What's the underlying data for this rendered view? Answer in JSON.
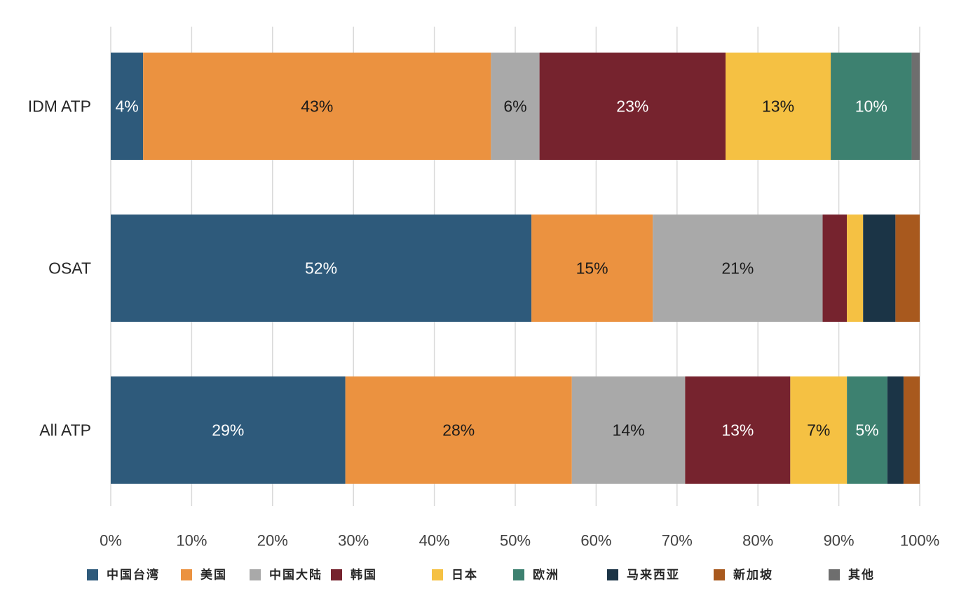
{
  "chart_data": {
    "type": "bar",
    "orientation": "horizontal",
    "stacked": true,
    "categories": [
      "IDM ATP",
      "OSAT",
      "All ATP"
    ],
    "xlim": [
      0,
      100
    ],
    "x_ticks": [
      "0%",
      "10%",
      "20%",
      "30%",
      "40%",
      "50%",
      "60%",
      "70%",
      "80%",
      "90%",
      "100%"
    ],
    "grid": true,
    "legend_position": "bottom",
    "series": [
      {
        "name": "中国台湾",
        "color": "#2e5a7b",
        "label_color": "#ffffff",
        "values": [
          4,
          52,
          29
        ],
        "labels": [
          "4%",
          "52%",
          "29%"
        ]
      },
      {
        "name": "美国",
        "color": "#eb9240",
        "label_color": "#1a1a1a",
        "values": [
          43,
          15,
          28
        ],
        "labels": [
          "43%",
          "15%",
          "28%"
        ]
      },
      {
        "name": "中国大陆",
        "color": "#a9a9a9",
        "label_color": "#1a1a1a",
        "values": [
          6,
          21,
          14
        ],
        "labels": [
          "6%",
          "21%",
          "14%"
        ]
      },
      {
        "name": "韩国",
        "color": "#76232e",
        "label_color": "#ffffff",
        "values": [
          23,
          3,
          13
        ],
        "labels": [
          "23%",
          "",
          "13%"
        ]
      },
      {
        "name": "日本",
        "color": "#f5c143",
        "label_color": "#1a1a1a",
        "values": [
          13,
          2,
          7
        ],
        "labels": [
          "13%",
          "",
          "7%"
        ]
      },
      {
        "name": "欧洲",
        "color": "#3d8170",
        "label_color": "#ffffff",
        "values": [
          10,
          0,
          5
        ],
        "labels": [
          "10%",
          "",
          "5%"
        ]
      },
      {
        "name": "马来西亚",
        "color": "#1b3446",
        "label_color": "#ffffff",
        "values": [
          0,
          4,
          2
        ],
        "labels": [
          "",
          "",
          ""
        ]
      },
      {
        "name": "新加坡",
        "color": "#a8591e",
        "label_color": "#ffffff",
        "values": [
          0,
          3,
          2
        ],
        "labels": [
          "",
          "",
          ""
        ]
      },
      {
        "name": "其他",
        "color": "#6e6e6e",
        "label_color": "#ffffff",
        "values": [
          1,
          0,
          0
        ],
        "labels": [
          "",
          "",
          ""
        ]
      }
    ]
  }
}
